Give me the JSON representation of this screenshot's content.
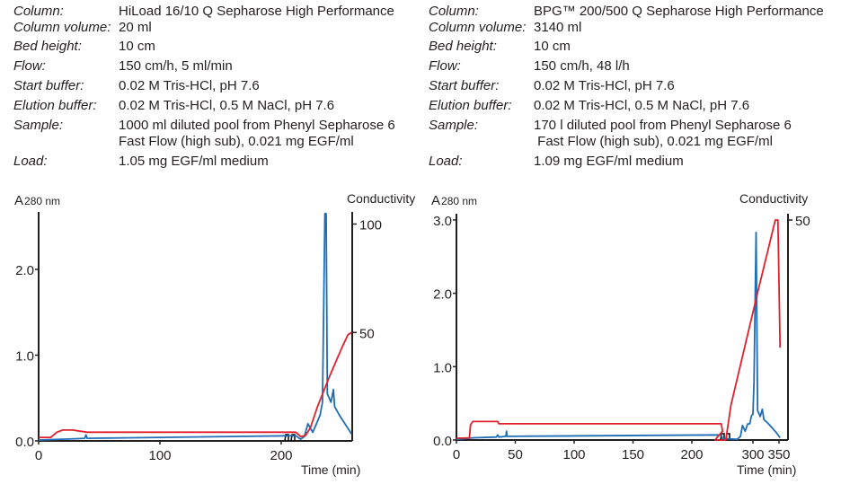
{
  "panels": [
    {
      "params": [
        {
          "label": "Column:",
          "value": "HiLoad 16/10 Q Sepharose High Performance"
        },
        {
          "label": "Column volume:",
          "value": "20 ml"
        },
        {
          "label": "Bed height:",
          "value": "10 cm"
        },
        {
          "label": "Flow:",
          "value": "150 cm/h, 5 ml/min"
        },
        {
          "label": "Start buffer:",
          "value": "0.02 M Tris-HCl, pH 7.6"
        },
        {
          "label": "Elution buffer:",
          "value": "0.02 M Tris-HCl, 0.5 M NaCl, pH 7.6"
        },
        {
          "label": "Sample:",
          "value": "1000 ml diluted pool from Phenyl Sepharose 6",
          "value2": "Fast Flow (high sub), 0.021 mg EGF/ml"
        },
        {
          "label": "Load:",
          "value": "1.05 mg EGF/ml medium"
        }
      ]
    },
    {
      "params": [
        {
          "label": "Column:",
          "value": "BPG™ 200/500 Q Sepharose High Performance"
        },
        {
          "label": "Column volume:",
          "value": "3140 ml"
        },
        {
          "label": "Bed height:",
          "value": "10 cm"
        },
        {
          "label": "Flow:",
          "value": "150 cm/h, 48 l/h"
        },
        {
          "label": "Start buffer:",
          "value": "0.02 M Tris-HCl, pH 7.6"
        },
        {
          "label": "Elution buffer:",
          "value": "0.02 M Tris-HCl, 0.5 M NaCl, pH 7.6"
        },
        {
          "label": "Sample:",
          "value": "170 l diluted pool from Phenyl Sepharose 6",
          "value2": " Fast Flow (high sub), 0.021 mg EGF/ml"
        },
        {
          "label": "Load:",
          "value": "1.09 mg EGF/ml medium"
        }
      ]
    }
  ],
  "chart_data": [
    {
      "type": "line",
      "ylabel": "A",
      "ylabel_sub": "280 nm",
      "y2label": "Conductivity",
      "xlabel": "Time (min)",
      "xticks": [
        "0",
        "100",
        "200"
      ],
      "yticks": [
        "0.0",
        "1.0",
        "2.0"
      ],
      "y2ticks": [
        "50",
        "100"
      ],
      "xlim": [
        0,
        258
      ],
      "ylim": [
        0,
        2.65
      ],
      "y2lim": [
        0,
        105
      ],
      "grid": false,
      "series": [
        {
          "axis": "left",
          "color": "#1f6db5",
          "x": [
            0,
            30,
            38,
            39,
            40,
            205,
            212,
            216,
            219,
            222,
            224,
            226,
            229,
            232,
            234,
            236,
            237,
            238,
            241,
            243,
            244,
            248,
            258
          ],
          "y": [
            0.01,
            0.025,
            0.03,
            0.07,
            0.03,
            0.06,
            0.06,
            0.02,
            0.05,
            0.2,
            0.15,
            0.1,
            0.2,
            0.3,
            0.45,
            2.65,
            2.65,
            0.55,
            0.45,
            0.6,
            0.4,
            0.3,
            0.08
          ]
        },
        {
          "axis": "right",
          "color": "#e0202a",
          "x": [
            0,
            10,
            15,
            20,
            28,
            40,
            212,
            216,
            220,
            224,
            230,
            240,
            250,
            255,
            258
          ],
          "y": [
            1.6,
            1.6,
            4,
            5,
            5,
            4,
            4,
            2,
            2.5,
            6,
            16,
            30,
            43,
            49,
            50
          ]
        }
      ]
    },
    {
      "type": "line",
      "ylabel": "A",
      "ylabel_sub": "280 nm",
      "y2label": "Conductivity",
      "xlabel": "Time (min)",
      "xticks": [
        "0",
        "50",
        "100",
        "150",
        "200",
        "300",
        "350"
      ],
      "yticks": [
        "0.0",
        "1.0",
        "2.0",
        "3.0"
      ],
      "y2ticks": [
        "50"
      ],
      "xlim": [
        0,
        369
      ],
      "x_axis_break": [
        226,
        248
      ],
      "ylim": [
        0,
        3.05
      ],
      "y2lim": [
        0,
        51
      ],
      "grid": false,
      "series": [
        {
          "axis": "left",
          "color": "#1f6db5",
          "x": [
            0,
            15,
            34,
            35,
            36,
            42,
            42.5,
            43,
            225,
            226,
            270,
            276,
            280,
            285,
            290,
            294,
            297,
            300,
            302,
            306,
            309,
            314,
            318,
            321,
            330,
            345,
            352
          ],
          "y": [
            0.01,
            0.03,
            0.04,
            0.07,
            0.04,
            0.05,
            0.12,
            0.05,
            0.07,
            0.02,
            0.01,
            0.05,
            0.2,
            0.12,
            0.22,
            0.22,
            0.33,
            0.35,
            0.8,
            2.83,
            0.4,
            0.32,
            0.42,
            0.28,
            0.22,
            0.1,
            0.03
          ]
        },
        {
          "axis": "right",
          "color": "#e0202a",
          "x": [
            0,
            11,
            12,
            14,
            35,
            36,
            225,
            226,
            227,
            248,
            258,
            268,
            308,
            343,
            348,
            352
          ],
          "y": [
            0.4,
            0.5,
            3.5,
            4.2,
            4.2,
            3.7,
            3.7,
            2,
            0,
            0,
            8,
            13,
            33,
            50,
            50,
            21
          ]
        }
      ]
    }
  ]
}
